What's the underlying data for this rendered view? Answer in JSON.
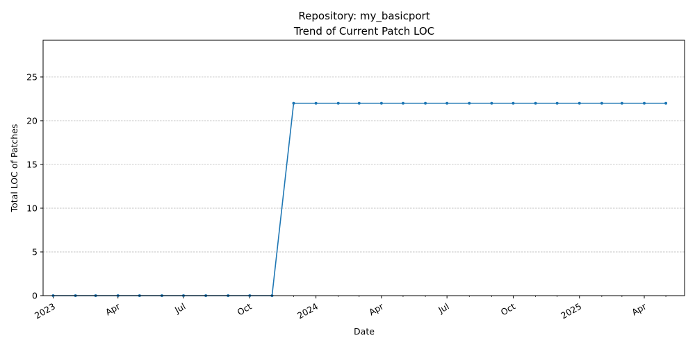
{
  "chart_data": {
    "type": "line",
    "title": "Repository: my_basicport",
    "subtitle": "Trend of Current Patch LOC",
    "xlabel": "Date",
    "ylabel": "Total LOC of Patches",
    "ylim": [
      0,
      29.2
    ],
    "yticks": [
      0,
      5,
      10,
      15,
      20,
      25
    ],
    "grid": "y-dashed",
    "color": "#1f77b4",
    "x_range": [
      "2022-12-18",
      "2025-05-27"
    ],
    "xticks": [
      {
        "date": "2023-01-01",
        "label": "2023"
      },
      {
        "date": "2023-04-01",
        "label": "Apr"
      },
      {
        "date": "2023-07-01",
        "label": "Jul"
      },
      {
        "date": "2023-10-01",
        "label": "Oct"
      },
      {
        "date": "2024-01-01",
        "label": "2024"
      },
      {
        "date": "2024-04-01",
        "label": "Apr"
      },
      {
        "date": "2024-07-01",
        "label": "Jul"
      },
      {
        "date": "2024-10-01",
        "label": "Oct"
      },
      {
        "date": "2025-01-01",
        "label": "2025"
      },
      {
        "date": "2025-04-01",
        "label": "Apr"
      }
    ],
    "minor_xticks": [
      "2023-02-01",
      "2023-03-01",
      "2023-05-01",
      "2023-06-01",
      "2023-08-01",
      "2023-09-01",
      "2023-11-01",
      "2023-12-01",
      "2024-02-01",
      "2024-03-01",
      "2024-05-01",
      "2024-06-01",
      "2024-08-01",
      "2024-09-01",
      "2024-11-01",
      "2024-12-01",
      "2025-02-01",
      "2025-03-01",
      "2025-05-01"
    ],
    "series": [
      {
        "name": "",
        "x": [
          "2023-01-01",
          "2023-02-01",
          "2023-03-01",
          "2023-04-01",
          "2023-05-01",
          "2023-06-01",
          "2023-07-01",
          "2023-08-01",
          "2023-09-01",
          "2023-10-01",
          "2023-11-01",
          "2023-12-01",
          "2024-01-01",
          "2024-02-01",
          "2024-03-01",
          "2024-04-01",
          "2024-05-01",
          "2024-06-01",
          "2024-07-01",
          "2024-08-01",
          "2024-09-01",
          "2024-10-01",
          "2024-11-01",
          "2024-12-01",
          "2025-01-01",
          "2025-02-01",
          "2025-03-01",
          "2025-04-01",
          "2025-05-01"
        ],
        "y": [
          0,
          0,
          0,
          0,
          0,
          0,
          0,
          0,
          0,
          0,
          0,
          22,
          22,
          22,
          22,
          22,
          22,
          22,
          22,
          22,
          22,
          22,
          22,
          22,
          22,
          22,
          22,
          22,
          22
        ]
      }
    ]
  }
}
